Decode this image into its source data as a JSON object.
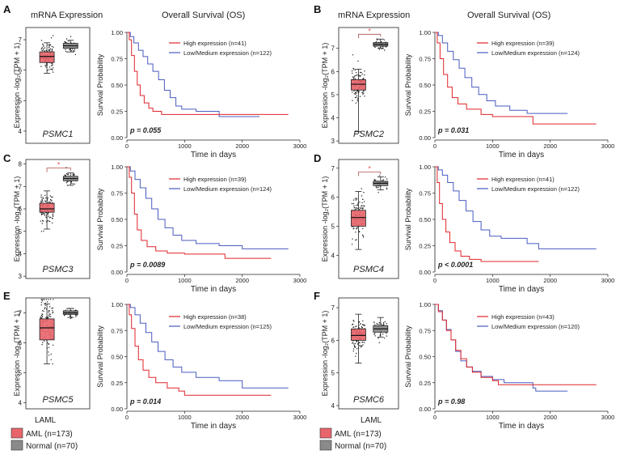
{
  "colors": {
    "aml": "#e8656b",
    "normal": "#8a8a8a",
    "high": "#e0252a",
    "low": "#4a5bbf",
    "asterisk": "#e05a5a"
  },
  "headers": {
    "left_mrna": "mRNA Expression",
    "left_os": "Overall Survival (OS)",
    "right_mrna": "mRNA Expression",
    "right_os": "Overall Survival (OS)"
  },
  "footer": {
    "xcat": "LAML"
  },
  "legend": {
    "aml": "AML (n=173)",
    "normal": "Normal (n=70)"
  },
  "axis_text": {
    "box_ylabel": "Expression -log₂(TPM + 1)",
    "km_ylabel": "Survival Probability",
    "km_xlabel": "Time in days",
    "high_prefix": "High expression",
    "low_prefix": "Low/Medium expression"
  },
  "chart_data": [
    {
      "panel": "A",
      "gene": "PSMC1",
      "type": "box+kaplan-meier",
      "box": {
        "ylim": [
          3.6,
          7.4
        ],
        "yticks": [
          4,
          5,
          6,
          7
        ],
        "aml": {
          "q1": 6.25,
          "median": 6.45,
          "q3": 6.6,
          "whisker_low": 5.9,
          "whisker_high": 6.9,
          "n": 173
        },
        "normal": {
          "q1": 6.72,
          "median": 6.8,
          "q3": 6.88,
          "whisker_low": 6.6,
          "whisker_high": 6.98,
          "n": 70
        },
        "significant": false
      },
      "km": {
        "high_label": "High expression (n=41)",
        "low_label": "Low/Medium expression (n=122)",
        "p_value": "p = 0.055",
        "xlim": [
          0,
          3000
        ],
        "ylim": [
          0,
          1
        ],
        "xticks": [
          0,
          1000,
          2000,
          3000
        ],
        "yticks": [
          0,
          0.25,
          0.5,
          0.75,
          1
        ],
        "high": [
          [
            0,
            1
          ],
          [
            40,
            0.93
          ],
          [
            80,
            0.78
          ],
          [
            130,
            0.63
          ],
          [
            180,
            0.5
          ],
          [
            230,
            0.4
          ],
          [
            300,
            0.33
          ],
          [
            380,
            0.28
          ],
          [
            450,
            0.25
          ],
          [
            600,
            0.22
          ],
          [
            1000,
            0.22
          ],
          [
            2800,
            0.22
          ]
        ],
        "low": [
          [
            0,
            1
          ],
          [
            60,
            0.96
          ],
          [
            120,
            0.9
          ],
          [
            200,
            0.83
          ],
          [
            280,
            0.77
          ],
          [
            360,
            0.7
          ],
          [
            450,
            0.63
          ],
          [
            550,
            0.55
          ],
          [
            650,
            0.45
          ],
          [
            750,
            0.38
          ],
          [
            850,
            0.3
          ],
          [
            950,
            0.27
          ],
          [
            1200,
            0.25
          ],
          [
            1600,
            0.2
          ],
          [
            2300,
            0.2
          ]
        ]
      }
    },
    {
      "panel": "B",
      "gene": "PSMC2",
      "type": "box+kaplan-meier",
      "box": {
        "ylim": [
          2.9,
          7.9
        ],
        "yticks": [
          3,
          4,
          5,
          6,
          7
        ],
        "aml": {
          "q1": 5.2,
          "median": 5.45,
          "q3": 5.65,
          "whisker_low": 3.4,
          "whisker_high": 6.1,
          "n": 173
        },
        "normal": {
          "q1": 7.1,
          "median": 7.18,
          "q3": 7.25,
          "whisker_low": 7.0,
          "whisker_high": 7.4,
          "n": 70
        },
        "significant": true
      },
      "km": {
        "high_label": "High expression (n=39)",
        "low_label": "Low/Medium expression (n=124)",
        "p_value": "p = 0.031",
        "xlim": [
          0,
          3000
        ],
        "ylim": [
          0,
          1
        ],
        "xticks": [
          0,
          1000,
          2000,
          3000
        ],
        "yticks": [
          0,
          0.25,
          0.5,
          0.75,
          1
        ],
        "high": [
          [
            0,
            1
          ],
          [
            40,
            0.9
          ],
          [
            90,
            0.75
          ],
          [
            150,
            0.6
          ],
          [
            220,
            0.48
          ],
          [
            300,
            0.38
          ],
          [
            400,
            0.32
          ],
          [
            550,
            0.27
          ],
          [
            800,
            0.22
          ],
          [
            1000,
            0.2
          ],
          [
            1700,
            0.2
          ],
          [
            1700,
            0.13
          ],
          [
            2800,
            0.13
          ]
        ],
        "low": [
          [
            0,
            1
          ],
          [
            60,
            0.97
          ],
          [
            130,
            0.9
          ],
          [
            220,
            0.82
          ],
          [
            320,
            0.74
          ],
          [
            420,
            0.66
          ],
          [
            520,
            0.57
          ],
          [
            640,
            0.48
          ],
          [
            760,
            0.41
          ],
          [
            900,
            0.35
          ],
          [
            1050,
            0.3
          ],
          [
            1300,
            0.26
          ],
          [
            1600,
            0.23
          ],
          [
            2300,
            0.23
          ]
        ]
      }
    },
    {
      "panel": "C",
      "gene": "PSMC3",
      "type": "box+kaplan-meier",
      "box": {
        "ylim": [
          2.9,
          8.2
        ],
        "yticks": [
          3,
          4,
          5,
          6,
          7,
          8
        ],
        "aml": {
          "q1": 5.85,
          "median": 6.0,
          "q3": 6.25,
          "whisker_low": 5.1,
          "whisker_high": 6.8,
          "n": 173
        },
        "normal": {
          "q1": 7.25,
          "median": 7.35,
          "q3": 7.45,
          "whisker_low": 7.05,
          "whisker_high": 7.6,
          "n": 70
        },
        "significant": true
      },
      "km": {
        "high_label": "High expression (n=39)",
        "low_label": "Low/Medium expression (n=124)",
        "p_value": "p = 0.0089",
        "xlim": [
          0,
          3000
        ],
        "ylim": [
          0,
          1
        ],
        "xticks": [
          0,
          1000,
          2000,
          3000
        ],
        "yticks": [
          0,
          0.25,
          0.5,
          0.75,
          1
        ],
        "high": [
          [
            0,
            1
          ],
          [
            40,
            0.9
          ],
          [
            80,
            0.75
          ],
          [
            130,
            0.55
          ],
          [
            180,
            0.4
          ],
          [
            250,
            0.3
          ],
          [
            350,
            0.24
          ],
          [
            500,
            0.2
          ],
          [
            700,
            0.18
          ],
          [
            1000,
            0.17
          ],
          [
            1600,
            0.17
          ],
          [
            1700,
            0.13
          ],
          [
            2500,
            0.13
          ]
        ],
        "low": [
          [
            0,
            1
          ],
          [
            60,
            0.96
          ],
          [
            140,
            0.88
          ],
          [
            230,
            0.8
          ],
          [
            330,
            0.7
          ],
          [
            430,
            0.6
          ],
          [
            540,
            0.5
          ],
          [
            660,
            0.42
          ],
          [
            800,
            0.35
          ],
          [
            950,
            0.3
          ],
          [
            1200,
            0.27
          ],
          [
            1600,
            0.25
          ],
          [
            2000,
            0.22
          ],
          [
            2800,
            0.22
          ]
        ]
      }
    },
    {
      "panel": "D",
      "gene": "PSMC4",
      "type": "box+kaplan-meier",
      "box": {
        "ylim": [
          3.2,
          7.3
        ],
        "yticks": [
          4,
          5,
          6,
          7
        ],
        "aml": {
          "q1": 5.0,
          "median": 5.3,
          "q3": 5.55,
          "whisker_low": 4.2,
          "whisker_high": 6.2,
          "n": 173
        },
        "normal": {
          "q1": 6.4,
          "median": 6.48,
          "q3": 6.55,
          "whisker_low": 6.25,
          "whisker_high": 6.7,
          "n": 70
        },
        "significant": true
      },
      "km": {
        "high_label": "High expression (n=41)",
        "low_label": "Low/Medium expression (n=122)",
        "p_value": "p < 0.0001",
        "xlim": [
          0,
          3000
        ],
        "ylim": [
          0,
          1
        ],
        "xticks": [
          0,
          1000,
          2000,
          3000
        ],
        "yticks": [
          0,
          0.25,
          0.5,
          0.75,
          1
        ],
        "high": [
          [
            0,
            1
          ],
          [
            40,
            0.85
          ],
          [
            80,
            0.65
          ],
          [
            130,
            0.5
          ],
          [
            190,
            0.38
          ],
          [
            260,
            0.28
          ],
          [
            350,
            0.2
          ],
          [
            450,
            0.15
          ],
          [
            600,
            0.12
          ],
          [
            800,
            0.1
          ],
          [
            1800,
            0.1
          ]
        ],
        "low": [
          [
            0,
            1
          ],
          [
            60,
            0.97
          ],
          [
            130,
            0.92
          ],
          [
            220,
            0.85
          ],
          [
            320,
            0.77
          ],
          [
            420,
            0.68
          ],
          [
            540,
            0.58
          ],
          [
            660,
            0.48
          ],
          [
            800,
            0.4
          ],
          [
            950,
            0.34
          ],
          [
            1150,
            0.32
          ],
          [
            1600,
            0.27
          ],
          [
            1800,
            0.22
          ],
          [
            2800,
            0.22
          ]
        ]
      }
    },
    {
      "panel": "E",
      "gene": "PSMC5",
      "type": "box+kaplan-meier",
      "box": {
        "ylim": [
          3.8,
          7.5
        ],
        "yticks": [
          4,
          5,
          6,
          7
        ],
        "aml": {
          "q1": 6.1,
          "median": 6.5,
          "q3": 6.8,
          "whisker_low": 5.3,
          "whisker_high": 7.3,
          "n": 173
        },
        "normal": {
          "q1": 6.95,
          "median": 7.0,
          "q3": 7.07,
          "whisker_low": 6.85,
          "whisker_high": 7.15,
          "n": 70
        },
        "significant": false
      },
      "km": {
        "high_label": "High expression (n=38)",
        "low_label": "Low/Medium expression (n=125)",
        "p_value": "p = 0.014",
        "xlim": [
          0,
          3000
        ],
        "ylim": [
          0,
          1
        ],
        "xticks": [
          0,
          1000,
          2000,
          3000
        ],
        "yticks": [
          0,
          0.25,
          0.5,
          0.75,
          1
        ],
        "high": [
          [
            0,
            1
          ],
          [
            40,
            0.9
          ],
          [
            80,
            0.77
          ],
          [
            140,
            0.6
          ],
          [
            200,
            0.47
          ],
          [
            280,
            0.37
          ],
          [
            380,
            0.3
          ],
          [
            500,
            0.25
          ],
          [
            700,
            0.2
          ],
          [
            900,
            0.17
          ],
          [
            1000,
            0.13
          ],
          [
            2500,
            0.13
          ]
        ],
        "low": [
          [
            0,
            1
          ],
          [
            60,
            0.97
          ],
          [
            140,
            0.9
          ],
          [
            230,
            0.82
          ],
          [
            330,
            0.73
          ],
          [
            430,
            0.64
          ],
          [
            540,
            0.55
          ],
          [
            660,
            0.47
          ],
          [
            800,
            0.4
          ],
          [
            950,
            0.35
          ],
          [
            1200,
            0.3
          ],
          [
            1600,
            0.27
          ],
          [
            2000,
            0.2
          ],
          [
            2800,
            0.2
          ]
        ]
      }
    },
    {
      "panel": "F",
      "gene": "PSMC6",
      "type": "box+kaplan-meier",
      "box": {
        "ylim": [
          3.9,
          7.3
        ],
        "yticks": [
          4,
          5,
          6,
          7
        ],
        "aml": {
          "q1": 6.0,
          "median": 6.15,
          "q3": 6.35,
          "whisker_low": 5.3,
          "whisker_high": 6.8,
          "n": 173
        },
        "normal": {
          "q1": 6.25,
          "median": 6.35,
          "q3": 6.45,
          "whisker_low": 6.1,
          "whisker_high": 6.7,
          "n": 70
        },
        "significant": false
      },
      "km": {
        "high_label": "High expression (n=43)",
        "low_label": "Low/Medium expression (n=120)",
        "p_value": "p = 0.98",
        "xlim": [
          0,
          3000
        ],
        "ylim": [
          0,
          1
        ],
        "xticks": [
          0,
          1000,
          2000,
          3000
        ],
        "yticks": [
          0,
          0.25,
          0.5,
          0.75,
          1
        ],
        "high": [
          [
            0,
            1
          ],
          [
            60,
            0.93
          ],
          [
            130,
            0.85
          ],
          [
            200,
            0.75
          ],
          [
            280,
            0.66
          ],
          [
            360,
            0.56
          ],
          [
            450,
            0.48
          ],
          [
            550,
            0.4
          ],
          [
            650,
            0.35
          ],
          [
            800,
            0.3
          ],
          [
            1000,
            0.27
          ],
          [
            1100,
            0.23
          ],
          [
            2800,
            0.23
          ]
        ],
        "low": [
          [
            0,
            1
          ],
          [
            60,
            0.94
          ],
          [
            130,
            0.85
          ],
          [
            200,
            0.76
          ],
          [
            280,
            0.66
          ],
          [
            360,
            0.55
          ],
          [
            450,
            0.46
          ],
          [
            550,
            0.4
          ],
          [
            650,
            0.36
          ],
          [
            800,
            0.31
          ],
          [
            1000,
            0.28
          ],
          [
            1200,
            0.25
          ],
          [
            1700,
            0.2
          ],
          [
            1750,
            0.17
          ],
          [
            2300,
            0.17
          ]
        ]
      }
    }
  ]
}
